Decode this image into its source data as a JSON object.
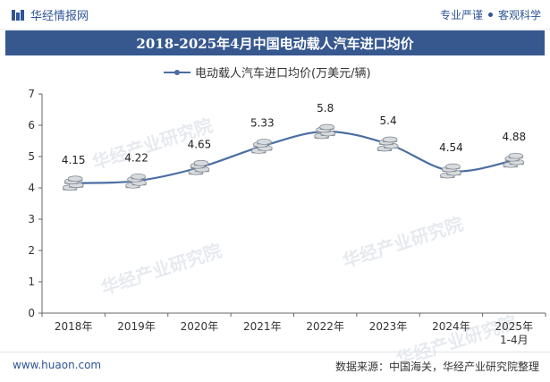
{
  "header": {
    "brand": "华经情报网",
    "tagline_left": "专业严谨",
    "tagline_right": "客观科学"
  },
  "footer": {
    "website": "www.huaon.com",
    "source": "数据来源：中国海关，华经产业研究院整理"
  },
  "watermark": "华经产业研究院",
  "colors": {
    "title_bar": "#36588f",
    "line": "#4a6da3",
    "brand": "#2f5597"
  },
  "icons": {
    "brand_logo": "huajing-logo-icon",
    "data_marker": "coin-stack-icon"
  },
  "chart_data": {
    "type": "line",
    "title": "2018-2025年4月中国电动载人汽车进口均价",
    "categories": [
      "2018年",
      "2019年",
      "2020年",
      "2021年",
      "2022年",
      "2023年",
      "2024年",
      "2025年\n1-4月"
    ],
    "series": [
      {
        "name": "电动载人汽车进口均价(万美元/辆)",
        "values": [
          4.15,
          4.22,
          4.65,
          5.33,
          5.8,
          5.4,
          4.54,
          4.88
        ]
      }
    ],
    "y_ticks": [
      0,
      1,
      2,
      3,
      4,
      5,
      6,
      7
    ],
    "ylim": [
      0,
      7
    ],
    "grid": false,
    "legend_position": "top-center",
    "smooth": true
  }
}
